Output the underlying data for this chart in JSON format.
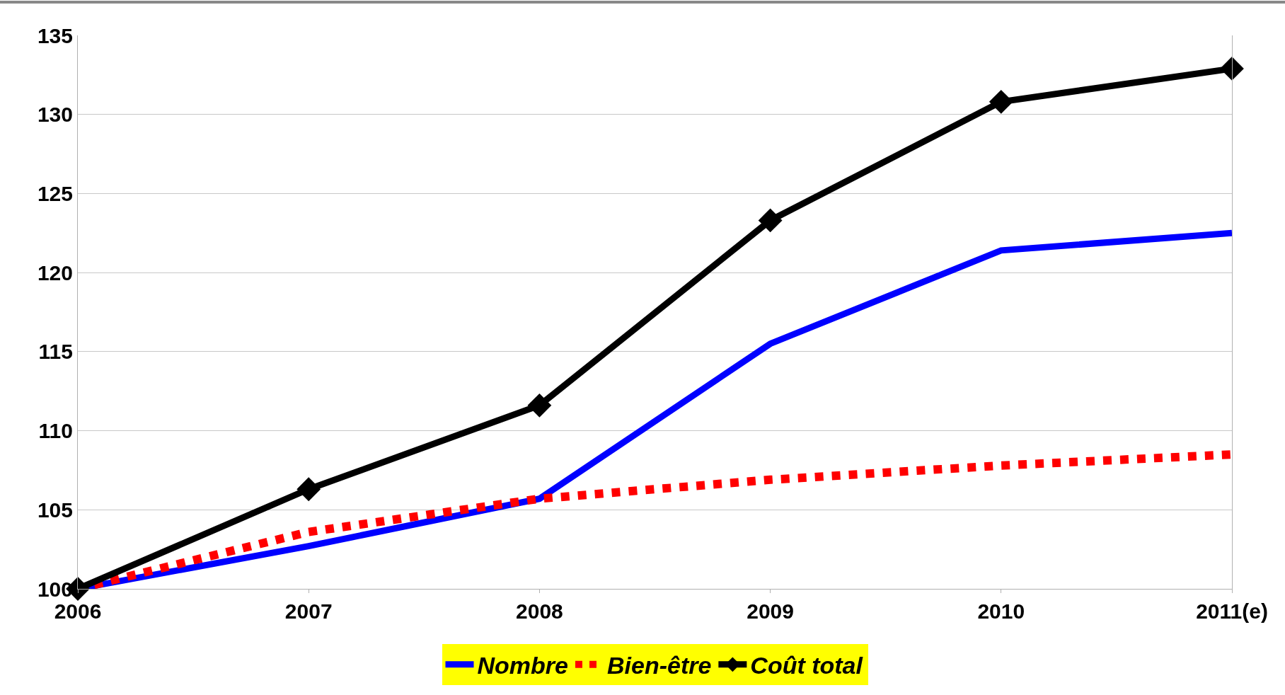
{
  "chart_data": {
    "type": "line",
    "categories": [
      "2006",
      "2007",
      "2008",
      "2009",
      "2010",
      "2011(e)"
    ],
    "series": [
      {
        "name": "Nombre",
        "color": "#0000ff",
        "line_style": "solid",
        "marker": "none",
        "values": [
          100,
          102.7,
          105.7,
          115.5,
          121.4,
          122.5
        ]
      },
      {
        "name": "Bien-être",
        "color": "#ff0000",
        "line_style": "dotted",
        "marker": "none",
        "values": [
          100,
          103.6,
          105.7,
          106.9,
          107.8,
          108.5
        ]
      },
      {
        "name": "Coût total",
        "color": "#000000",
        "line_style": "solid",
        "marker": "diamond",
        "values": [
          100,
          106.3,
          111.6,
          123.3,
          130.8,
          132.9
        ]
      }
    ],
    "ylim": [
      100,
      135
    ],
    "yticks": [
      100,
      105,
      110,
      115,
      120,
      125,
      130,
      135
    ],
    "grid": "y",
    "legend": "bottom"
  }
}
